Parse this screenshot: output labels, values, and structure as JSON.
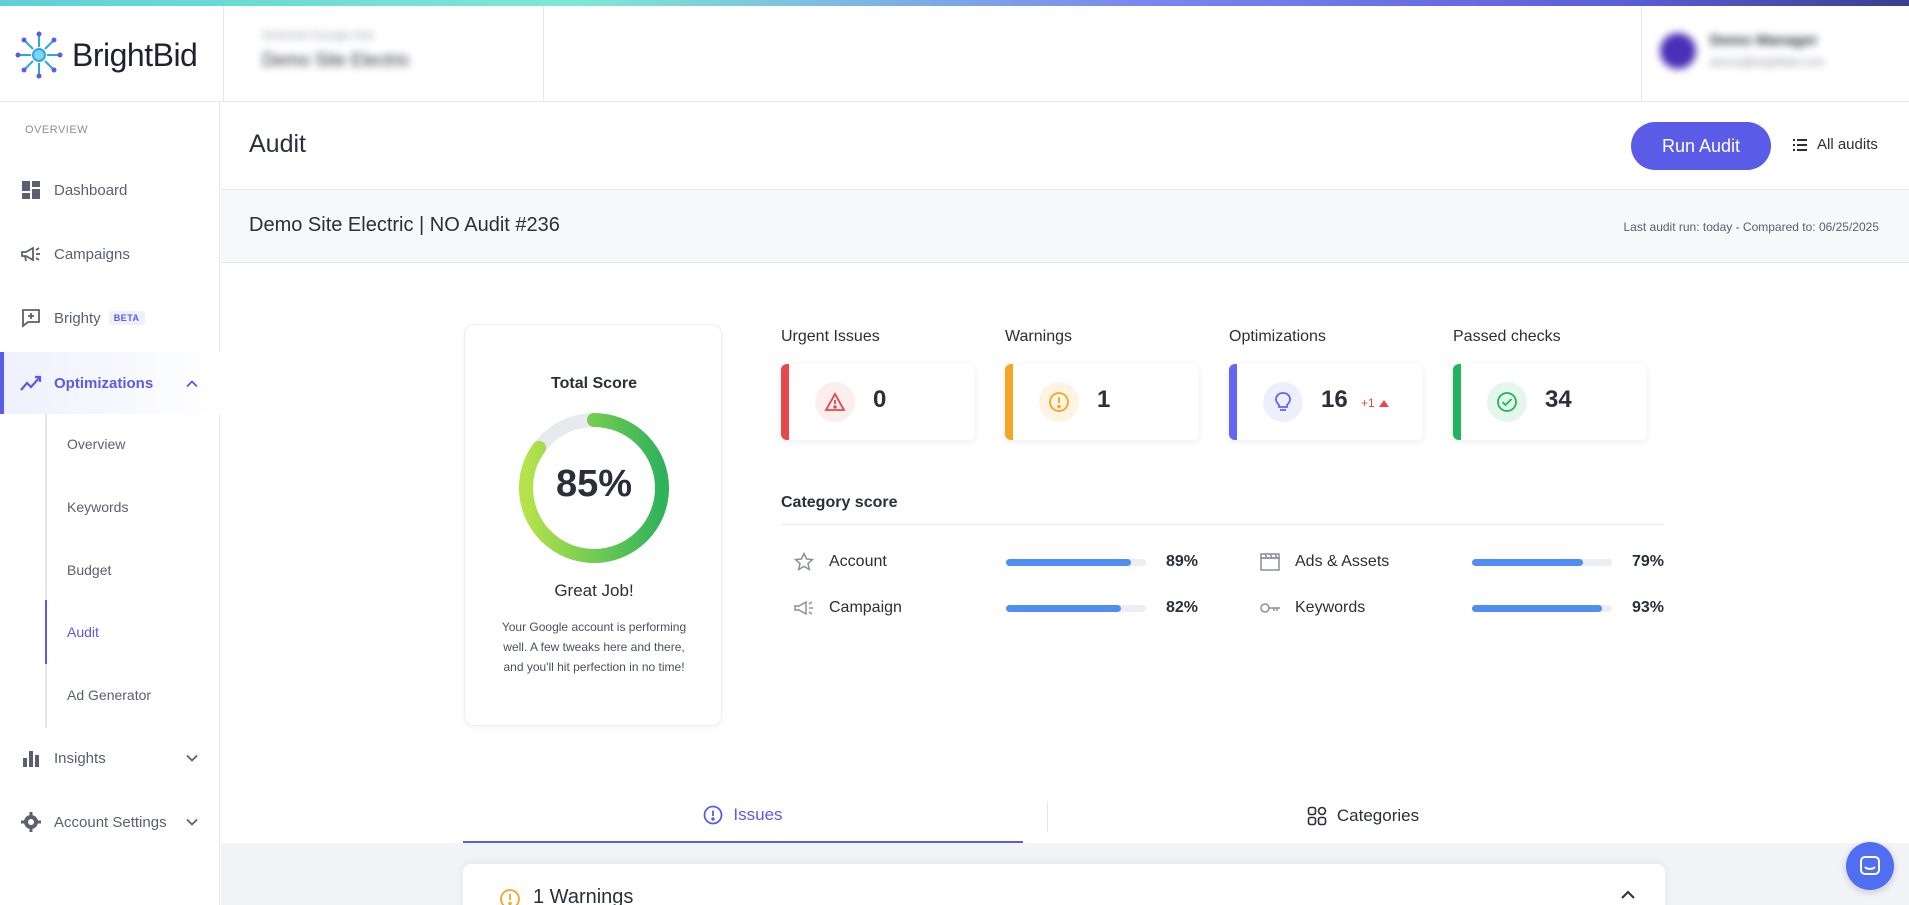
{
  "brand": {
    "name": "BrightBid"
  },
  "header": {
    "account_label": "Selected Google Ads",
    "account_value": "Demo Site Electric",
    "user_name": "Demo Manager",
    "user_email": "demo@brightbid.com"
  },
  "sidebar": {
    "section": "OVERVIEW",
    "items": [
      {
        "label": "Dashboard"
      },
      {
        "label": "Campaigns"
      },
      {
        "label": "Brighty",
        "badge": "BETA"
      },
      {
        "label": "Optimizations"
      },
      {
        "label": "Insights"
      },
      {
        "label": "Account Settings"
      }
    ],
    "sub_items": [
      {
        "label": "Overview"
      },
      {
        "label": "Keywords"
      },
      {
        "label": "Budget"
      },
      {
        "label": "Audit"
      },
      {
        "label": "Ad Generator"
      }
    ]
  },
  "page": {
    "title": "Audit",
    "run_audit": "Run Audit",
    "all_audits": "All audits",
    "audit_name": "Demo Site Electric | NO Audit #236",
    "audit_meta": "Last audit run: today - Compared to: 06/25/2025"
  },
  "score": {
    "title": "Total Score",
    "value": 85,
    "display": "85%",
    "message": "Great Job!",
    "description": "Your Google account is performing well. A few tweaks here and there, and you'll hit perfection in no time!"
  },
  "stats": [
    {
      "label": "Urgent Issues",
      "value": "0",
      "color": "#e5484d"
    },
    {
      "label": "Warnings",
      "value": "1",
      "color": "#f5a524"
    },
    {
      "label": "Optimizations",
      "value": "16",
      "delta": "+1",
      "color": "#6366f1"
    },
    {
      "label": "Passed checks",
      "value": "34",
      "color": "#22b35e"
    }
  ],
  "category_score": {
    "title": "Category score",
    "items": [
      {
        "name": "Account",
        "display": "89%",
        "value": 89,
        "icon": "star-icon"
      },
      {
        "name": "Campaign",
        "display": "82%",
        "value": 82,
        "icon": "megaphone-icon"
      },
      {
        "name": "Ads & Assets",
        "display": "79%",
        "value": 79,
        "icon": "clapper-icon"
      },
      {
        "name": "Keywords",
        "display": "93%",
        "value": 93,
        "icon": "key-icon"
      }
    ]
  },
  "tabs": [
    {
      "label": "Issues"
    },
    {
      "label": "Categories"
    }
  ],
  "warnings_panel": {
    "title": "1 Warnings"
  }
}
